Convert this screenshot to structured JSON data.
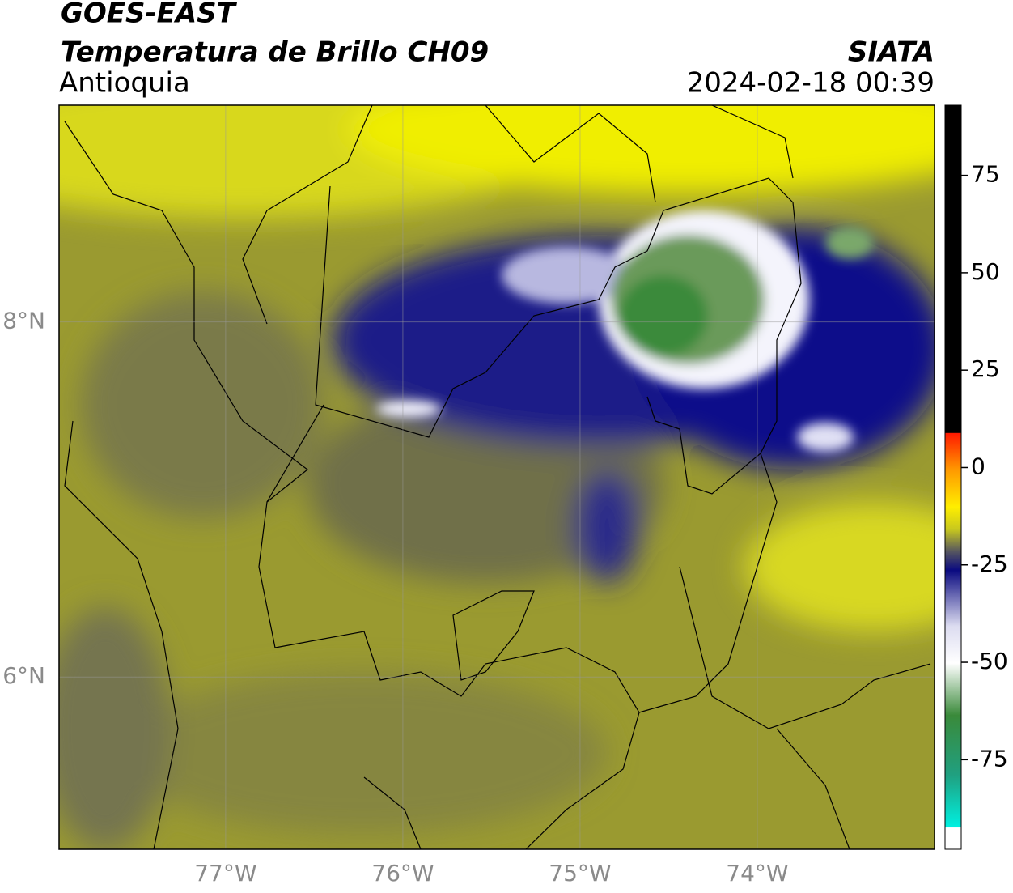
{
  "header": {
    "satellite": "GOES-EAST",
    "product": "Temperatura de Brillo CH09",
    "region": "Antioquia",
    "source": "SIATA",
    "datetime": "2024-02-18 00:39"
  },
  "map": {
    "lon_range": [
      -77.94,
      -73.0
    ],
    "lat_range": [
      5.03,
      9.22
    ],
    "lon_ticks": [
      {
        "value": -77,
        "label": "77°W"
      },
      {
        "value": -76,
        "label": "76°W"
      },
      {
        "value": -75,
        "label": "75°W"
      },
      {
        "value": -74,
        "label": "74°W"
      }
    ],
    "lat_ticks": [
      {
        "value": 8,
        "label": "8°N"
      },
      {
        "value": 6,
        "label": "6°N"
      }
    ]
  },
  "colorbar": {
    "range": [
      -98,
      93
    ],
    "ticks": [
      75,
      50,
      25,
      0,
      -25,
      -50,
      -75
    ]
  }
}
